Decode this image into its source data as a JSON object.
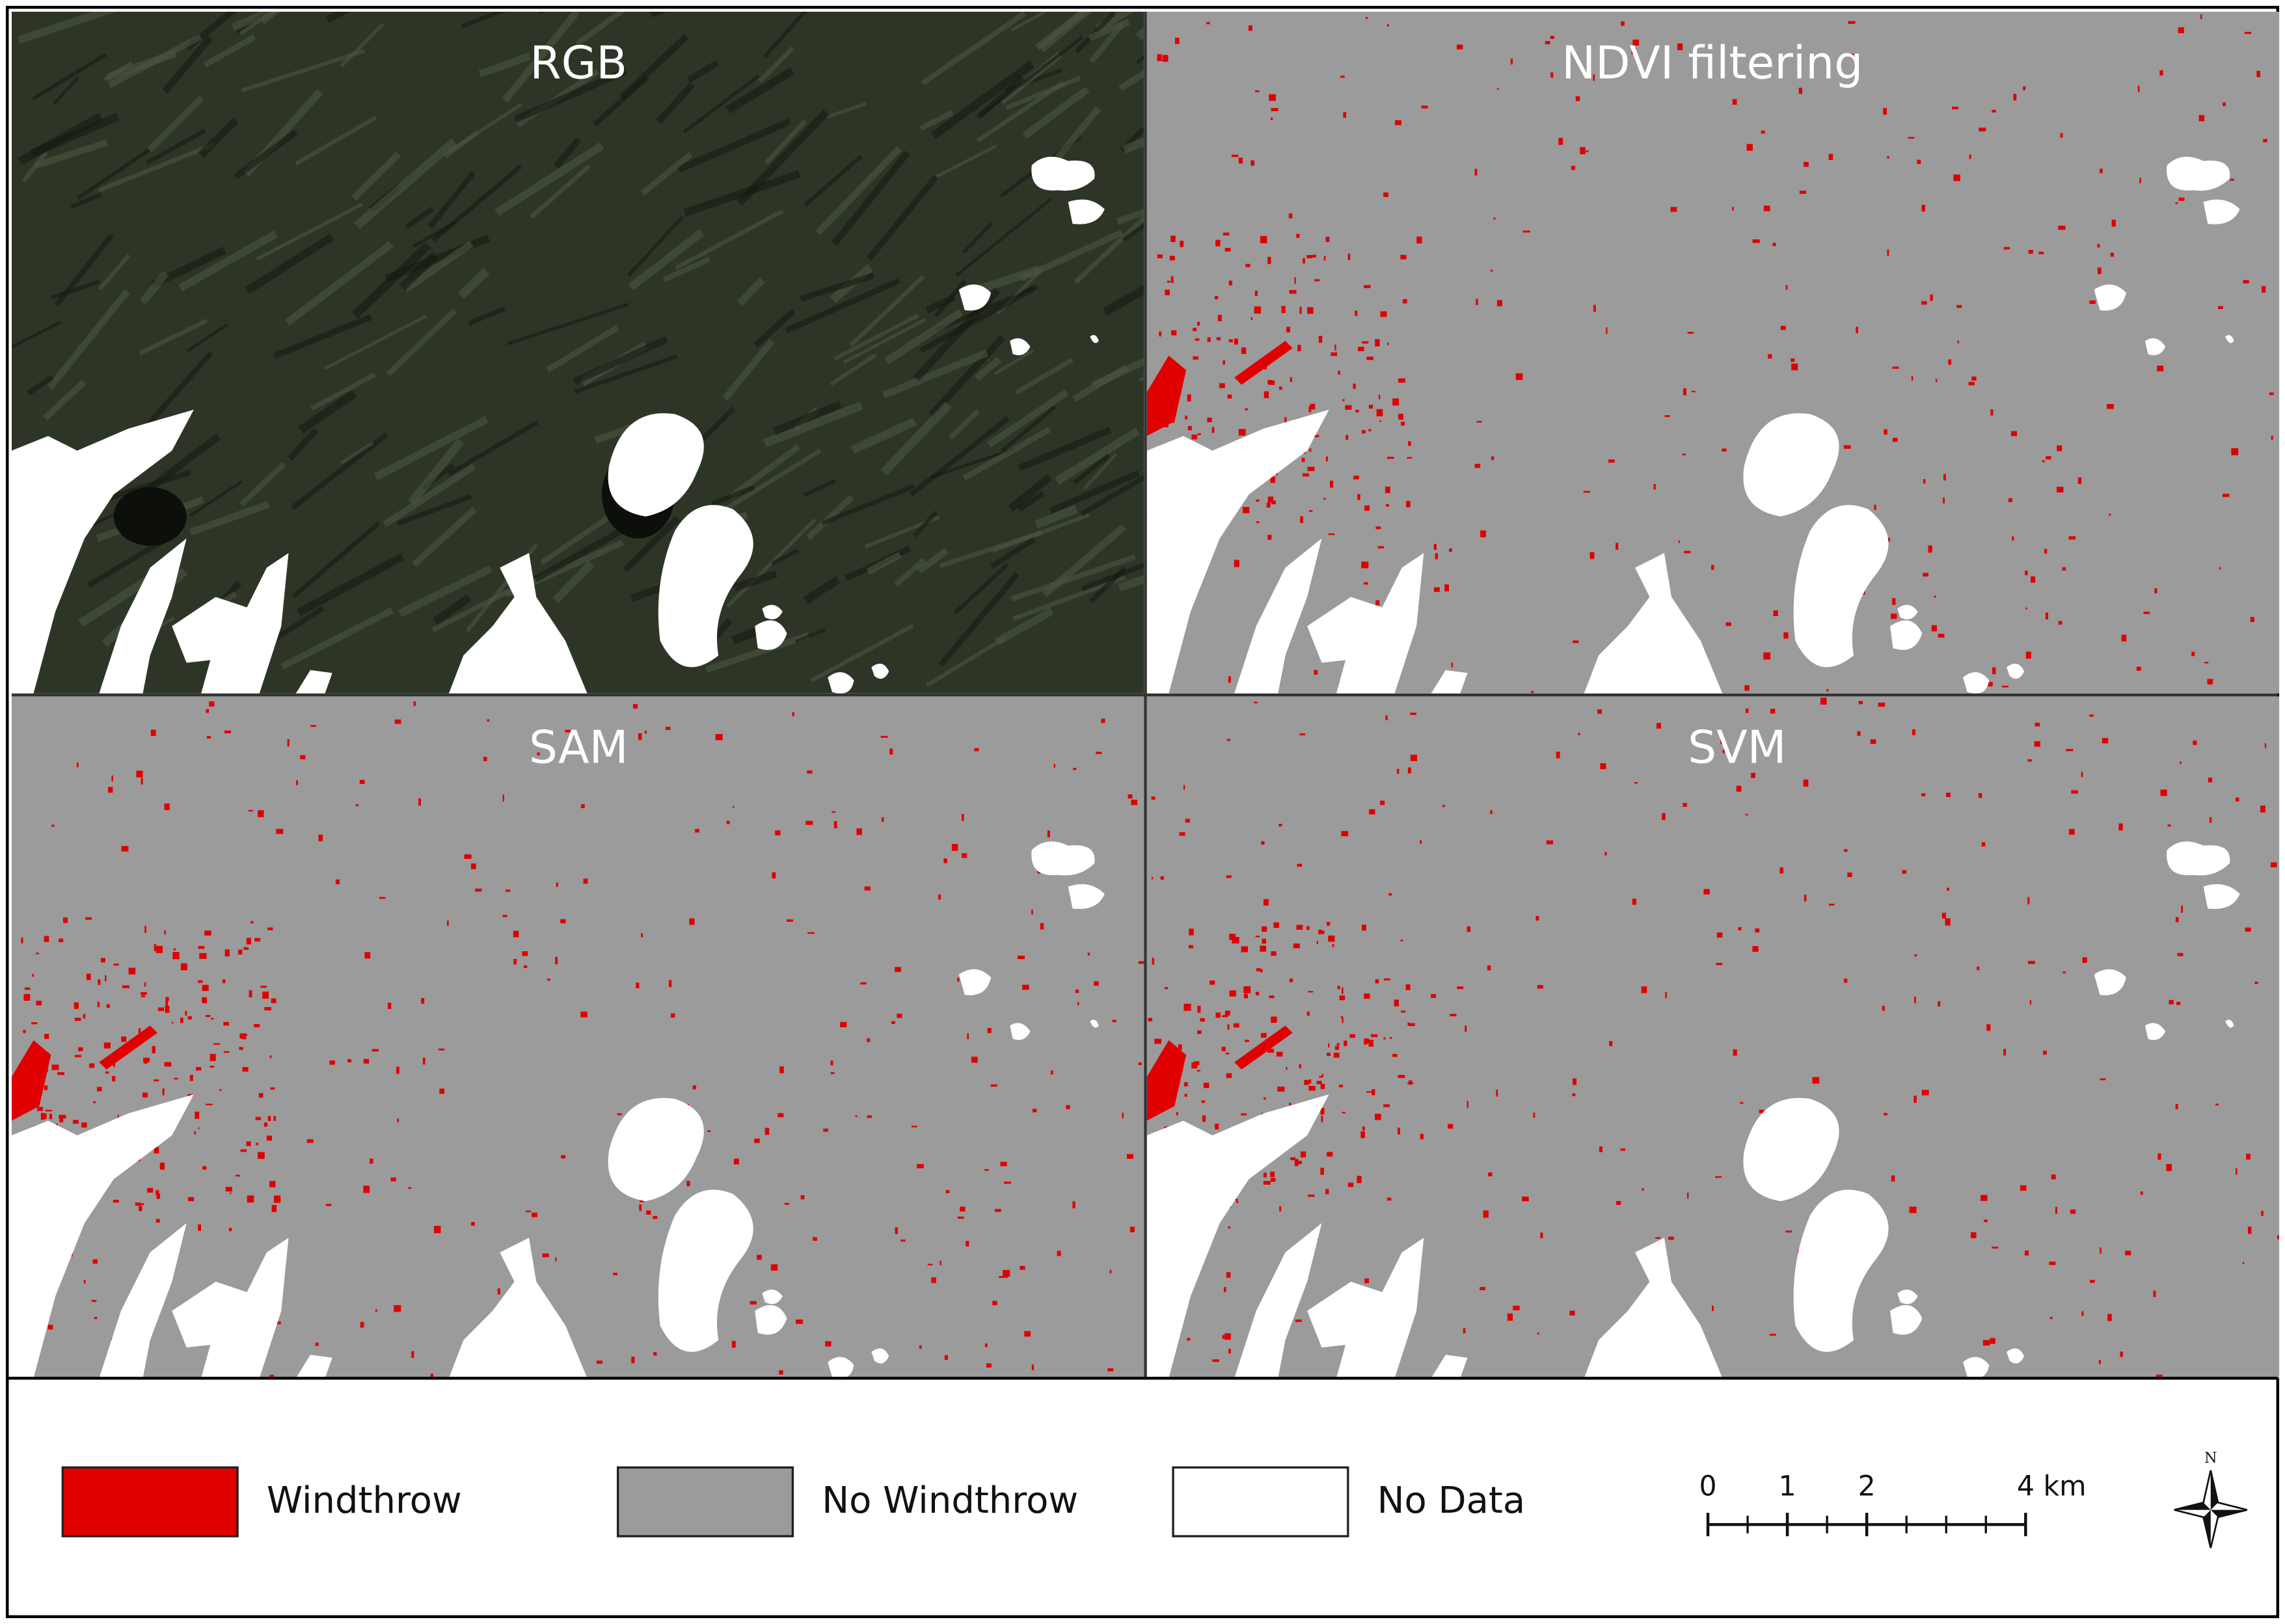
{
  "panels": [
    {
      "title": "RGB",
      "kind": "rgb"
    },
    {
      "title": "NDVI filtering",
      "kind": "class"
    },
    {
      "title": "SAM",
      "kind": "class"
    },
    {
      "title": "SVM",
      "kind": "class"
    }
  ],
  "legend": [
    {
      "label": "Windthrow",
      "color": "#e00000"
    },
    {
      "label": "No Windthrow",
      "color": "#9b9b9b"
    },
    {
      "label": "No Data",
      "color": "#ffffff"
    }
  ],
  "scale_bar": {
    "ticks": [
      0,
      1,
      2,
      {
        "value": 4,
        "label": "4 km"
      }
    ]
  },
  "north_arrow": "N"
}
